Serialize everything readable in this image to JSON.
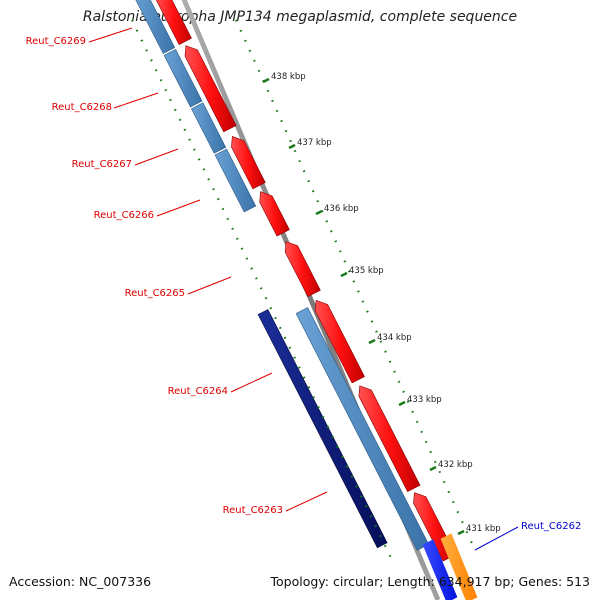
{
  "title": "Ralstonia eutropha JMP134 megaplasmid, complete sequence",
  "footer": {
    "accession": "Accession: NC_007336",
    "summary": "Topology: circular; Length: 634,917 bp; Genes: 513"
  },
  "scale": {
    "unit": "kbp",
    "ticks": [
      {
        "kbp": 438,
        "label": "438 kbp"
      },
      {
        "kbp": 437,
        "label": "437 kbp"
      },
      {
        "kbp": 436,
        "label": "436 kbp"
      },
      {
        "kbp": 435,
        "label": "435 kbp"
      },
      {
        "kbp": 434,
        "label": "434 kbp"
      },
      {
        "kbp": 433,
        "label": "433 kbp"
      },
      {
        "kbp": 432,
        "label": "432 kbp"
      },
      {
        "kbp": 431,
        "label": "431 kbp"
      }
    ]
  },
  "gene_labels": [
    {
      "name": "Reut_C6269",
      "color": "#dd0000"
    },
    {
      "name": "Reut_C6268",
      "color": "#dd0000"
    },
    {
      "name": "Reut_C6267",
      "color": "#dd0000"
    },
    {
      "name": "Reut_C6266",
      "color": "#dd0000"
    },
    {
      "name": "Reut_C6265",
      "color": "#dd0000"
    },
    {
      "name": "Reut_C6264",
      "color": "#dd0000"
    },
    {
      "name": "Reut_C6263",
      "color": "#dd0000"
    },
    {
      "name": "Reut_C6262",
      "color": "#0000cc"
    }
  ],
  "colors": {
    "cds": "#ff1a1a",
    "cds_dark": "#b00000",
    "cog_steelblue": "#4a86bf",
    "cog_navy": "#0a1a78",
    "gene_blue": "#1a2cff",
    "gene_orange": "#ff9010",
    "backbone": "#888888",
    "tick_green": "#1a7a1a"
  }
}
